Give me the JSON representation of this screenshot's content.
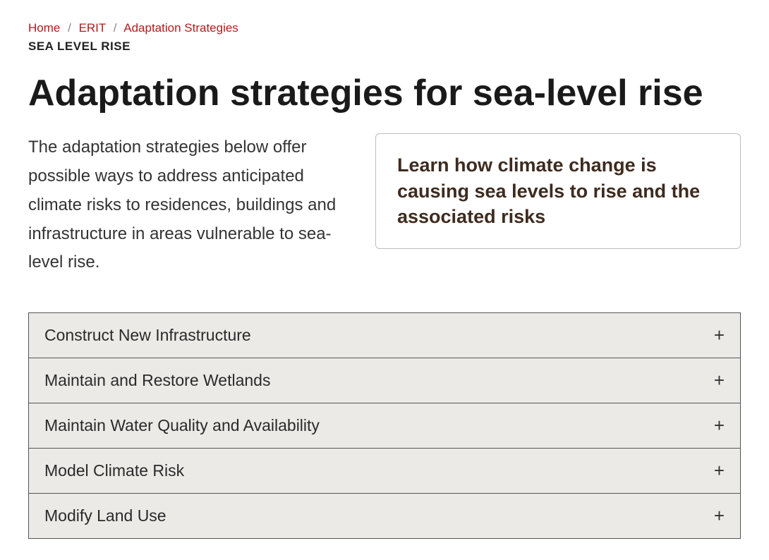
{
  "breadcrumb": {
    "items": [
      {
        "label": "Home"
      },
      {
        "label": "ERIT"
      },
      {
        "label": "Adaptation Strategies"
      }
    ],
    "separator": "/"
  },
  "section_label": "SEA LEVEL RISE",
  "page_title": "Adaptation strategies for sea-level rise",
  "intro_text": "The adaptation strategies below offer possible ways to address anticipated climate risks to residences, buildings and infrastructure in areas vulnerable to sea-level rise.",
  "callout": {
    "text": "Learn how climate change is causing sea levels to rise and the associated risks"
  },
  "accordion": {
    "expand_icon": "+",
    "items": [
      {
        "label": "Construct New Infrastructure"
      },
      {
        "label": "Maintain and Restore Wetlands"
      },
      {
        "label": "Maintain Water Quality and Availability"
      },
      {
        "label": "Model Climate Risk"
      },
      {
        "label": "Modify Land Use"
      }
    ]
  },
  "colors": {
    "link": "#b31b1b",
    "text": "#212121",
    "callout_text": "#3e2b1f",
    "callout_border": "#bdbdbd",
    "accordion_bg": "#eceae7",
    "accordion_border": "#555555",
    "background": "#ffffff"
  }
}
